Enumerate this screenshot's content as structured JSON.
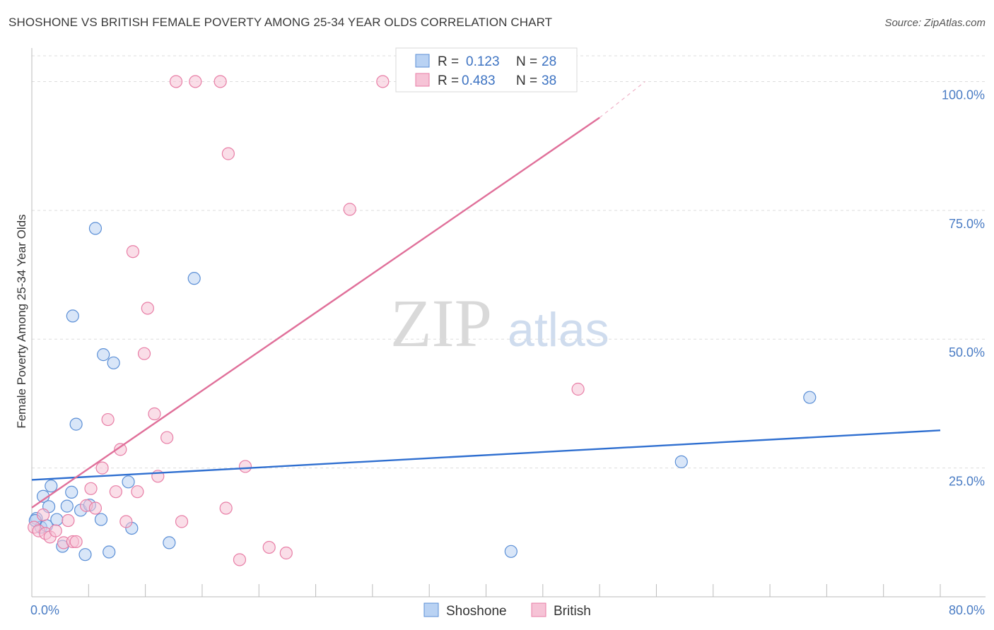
{
  "header": {
    "title": "SHOSHONE VS BRITISH FEMALE POVERTY AMONG 25-34 YEAR OLDS CORRELATION CHART",
    "source": "Source: ZipAtlas.com"
  },
  "watermark": {
    "zip": "ZIP",
    "atlas": "atlas"
  },
  "chart_data": {
    "type": "scatter",
    "title": "SHOSHONE VS BRITISH FEMALE POVERTY AMONG 25-34 YEAR OLDS CORRELATION CHART",
    "xlabel": "",
    "ylabel": "Female Poverty Among 25-34 Year Olds",
    "xlim": [
      0,
      80
    ],
    "ylim": [
      0,
      105
    ],
    "x_tick_labels": [
      "0.0%",
      "80.0%"
    ],
    "y_ticks": [
      25,
      50,
      75,
      100
    ],
    "y_tick_labels": [
      "25.0%",
      "50.0%",
      "75.0%",
      "100.0%"
    ],
    "grid": true,
    "legend_position": "top-center",
    "bottom_legend": [
      "Shoshone",
      "British"
    ],
    "stats": [
      {
        "r_label": "R =",
        "r_value": "0.123",
        "n_label": "N =",
        "n_value": "28"
      },
      {
        "r_label": "R =",
        "r_value": "0.483",
        "n_label": "N =",
        "n_value": "38"
      }
    ],
    "series": [
      {
        "name": "Shoshone",
        "color": "#5b8fd6",
        "fill": "#b9d2f3",
        "trend": {
          "x0": 0,
          "y0": 22.7,
          "x1": 80,
          "y1": 32.3
        },
        "points": [
          [
            0.4,
            15.2
          ],
          [
            0.8,
            13.5
          ],
          [
            1.0,
            19.5
          ],
          [
            1.3,
            13.8
          ],
          [
            1.5,
            17.5
          ],
          [
            1.7,
            21.5
          ],
          [
            2.2,
            15.0
          ],
          [
            2.7,
            9.8
          ],
          [
            3.1,
            17.6
          ],
          [
            3.5,
            20.3
          ],
          [
            3.6,
            54.5
          ],
          [
            3.9,
            33.5
          ],
          [
            4.3,
            16.8
          ],
          [
            4.7,
            8.2
          ],
          [
            5.1,
            17.8
          ],
          [
            5.6,
            71.5
          ],
          [
            6.1,
            15.0
          ],
          [
            6.3,
            47.0
          ],
          [
            6.8,
            8.7
          ],
          [
            7.2,
            45.4
          ],
          [
            8.5,
            22.3
          ],
          [
            8.8,
            13.3
          ],
          [
            12.1,
            10.5
          ],
          [
            14.3,
            61.8
          ],
          [
            42.2,
            8.8
          ],
          [
            57.2,
            26.2
          ],
          [
            68.5,
            38.7
          ],
          [
            0.3,
            14.8
          ]
        ]
      },
      {
        "name": "British",
        "color": "#e87ea6",
        "fill": "#f6c3d6",
        "trend": {
          "x0": 0,
          "y0": 17.3,
          "x1": 50.0,
          "y1": 93.0
        },
        "trend_extension": {
          "x0": 50.0,
          "y0": 93.0,
          "x1": 54.0,
          "y1": 100.0
        },
        "points": [
          [
            0.2,
            13.5
          ],
          [
            0.6,
            12.8
          ],
          [
            1.0,
            15.9
          ],
          [
            1.2,
            12.3
          ],
          [
            1.6,
            11.6
          ],
          [
            2.1,
            12.8
          ],
          [
            2.8,
            10.5
          ],
          [
            3.2,
            14.8
          ],
          [
            3.6,
            10.7
          ],
          [
            3.9,
            10.7
          ],
          [
            4.8,
            17.7
          ],
          [
            5.2,
            21.0
          ],
          [
            5.6,
            17.2
          ],
          [
            6.2,
            25.0
          ],
          [
            6.7,
            34.4
          ],
          [
            7.4,
            20.4
          ],
          [
            7.8,
            28.6
          ],
          [
            8.3,
            14.6
          ],
          [
            9.3,
            20.4
          ],
          [
            9.9,
            47.2
          ],
          [
            10.2,
            56.0
          ],
          [
            8.9,
            67.0
          ],
          [
            10.8,
            35.5
          ],
          [
            11.1,
            23.4
          ],
          [
            11.9,
            30.9
          ],
          [
            12.7,
            100.0
          ],
          [
            13.2,
            14.6
          ],
          [
            14.4,
            100.0
          ],
          [
            16.6,
            100.0
          ],
          [
            17.1,
            17.2
          ],
          [
            17.3,
            86.0
          ],
          [
            18.3,
            7.2
          ],
          [
            18.8,
            25.3
          ],
          [
            20.9,
            9.6
          ],
          [
            22.4,
            8.5
          ],
          [
            28.0,
            75.2
          ],
          [
            30.9,
            100.0
          ],
          [
            48.1,
            40.3
          ]
        ]
      }
    ]
  }
}
